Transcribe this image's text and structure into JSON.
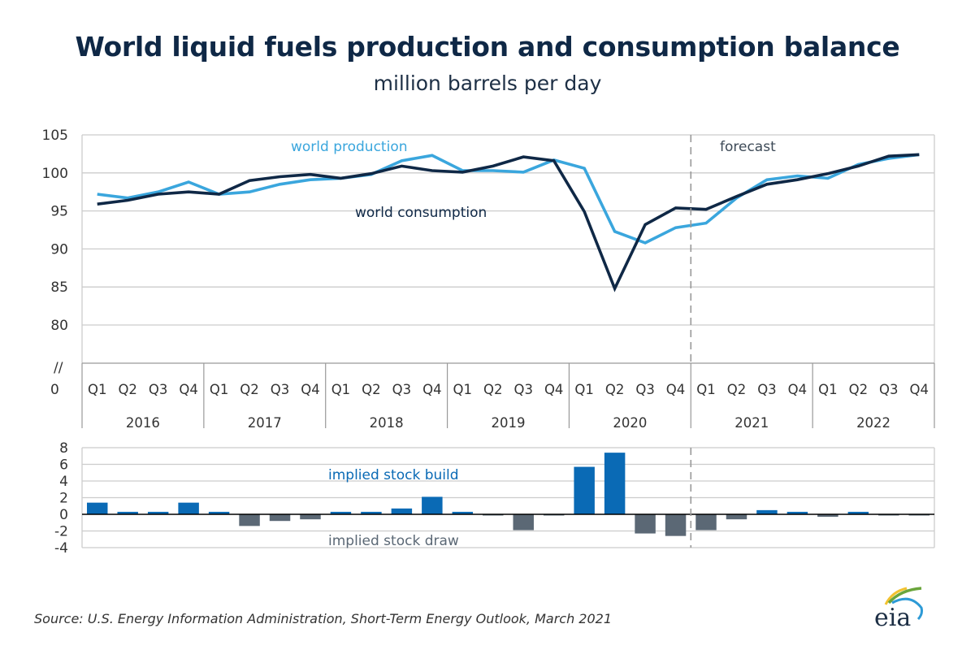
{
  "header": {
    "title": "World liquid fuels production and consumption balance",
    "subtitle": "million barrels per day"
  },
  "footer": {
    "source": "Source: U.S. Energy Information Administration, Short-Term Energy Outlook, March 2021",
    "logo_text": "eia"
  },
  "colors": {
    "production": "#3aa6dd",
    "consumption": "#0f2846",
    "stock_build": "#0a6ab5",
    "stock_draw": "#5b6875",
    "build_label": "#0a6ab5",
    "draw_label": "#5b6875",
    "forecast_label": "#3d4a57",
    "grid": "#cccccc"
  },
  "chart_data": [
    {
      "type": "line",
      "title": "World liquid fuels production and consumption balance",
      "subtitle": "million barrels per day",
      "xlabel": "",
      "ylabel": "million barrels per day",
      "ylim": [
        80,
        105
      ],
      "yticks": [
        105,
        100,
        95,
        90,
        85,
        80
      ],
      "axis_break_label": "//",
      "axis_zero_label": "0",
      "grid": true,
      "x": [
        "Q1 2016",
        "Q2 2016",
        "Q3 2016",
        "Q4 2016",
        "Q1 2017",
        "Q2 2017",
        "Q3 2017",
        "Q4 2017",
        "Q1 2018",
        "Q2 2018",
        "Q3 2018",
        "Q4 2018",
        "Q1 2019",
        "Q2 2019",
        "Q3 2019",
        "Q4 2019",
        "Q1 2020",
        "Q2 2020",
        "Q3 2020",
        "Q4 2020",
        "Q1 2021",
        "Q2 2021",
        "Q3 2021",
        "Q4 2021",
        "Q1 2022",
        "Q2 2022",
        "Q3 2022",
        "Q4 2022"
      ],
      "quarters": [
        "Q1",
        "Q2",
        "Q3",
        "Q4"
      ],
      "years": [
        "2016",
        "2017",
        "2018",
        "2019",
        "2020",
        "2021",
        "2022"
      ],
      "series": [
        {
          "name": "world production",
          "values": [
            97.2,
            96.7,
            97.5,
            98.8,
            97.2,
            97.5,
            98.5,
            99.1,
            99.3,
            99.8,
            101.6,
            102.3,
            100.3,
            100.3,
            100.1,
            101.7,
            100.6,
            92.3,
            90.8,
            92.8,
            93.4,
            96.7,
            99.1,
            99.6,
            99.3,
            101.1,
            101.9,
            102.4
          ]
        },
        {
          "name": "world consumption",
          "values": [
            95.9,
            96.4,
            97.2,
            97.5,
            97.2,
            99.0,
            99.5,
            99.8,
            99.3,
            99.9,
            100.9,
            100.3,
            100.1,
            100.9,
            102.1,
            101.6,
            94.9,
            84.8,
            93.2,
            95.4,
            95.2,
            96.9,
            98.5,
            99.1,
            99.9,
            100.9,
            102.2,
            102.4
          ]
        }
      ],
      "annotations": {
        "production_label": "world production",
        "consumption_label": "world consumption",
        "forecast_label": "forecast"
      },
      "forecast_start": "Q1 2021",
      "legend": "inline"
    },
    {
      "type": "bar",
      "title": "",
      "ylim": [
        -4,
        8
      ],
      "yticks": [
        8,
        6,
        4,
        2,
        0,
        -2,
        -4
      ],
      "grid": true,
      "categories": [
        "Q1 2016",
        "Q2 2016",
        "Q3 2016",
        "Q4 2016",
        "Q1 2017",
        "Q2 2017",
        "Q3 2017",
        "Q4 2017",
        "Q1 2018",
        "Q2 2018",
        "Q3 2018",
        "Q4 2018",
        "Q1 2019",
        "Q2 2019",
        "Q3 2019",
        "Q4 2019",
        "Q1 2020",
        "Q2 2020",
        "Q3 2020",
        "Q4 2020",
        "Q1 2021",
        "Q2 2021",
        "Q3 2021",
        "Q4 2021",
        "Q1 2022",
        "Q2 2022",
        "Q3 2022",
        "Q4 2022"
      ],
      "values": [
        1.4,
        0.3,
        0.3,
        1.4,
        0.3,
        -1.4,
        -0.8,
        -0.6,
        0.3,
        0.3,
        0.7,
        2.1,
        0.3,
        -0.1,
        -1.9,
        -0.1,
        5.7,
        7.4,
        -2.3,
        -2.6,
        -1.9,
        -0.6,
        0.5,
        0.3,
        -0.3,
        0.3,
        -0.1,
        -0.1
      ],
      "annotations": {
        "build_label": "implied stock build",
        "draw_label": "implied stock draw"
      },
      "legend": "inline"
    }
  ]
}
